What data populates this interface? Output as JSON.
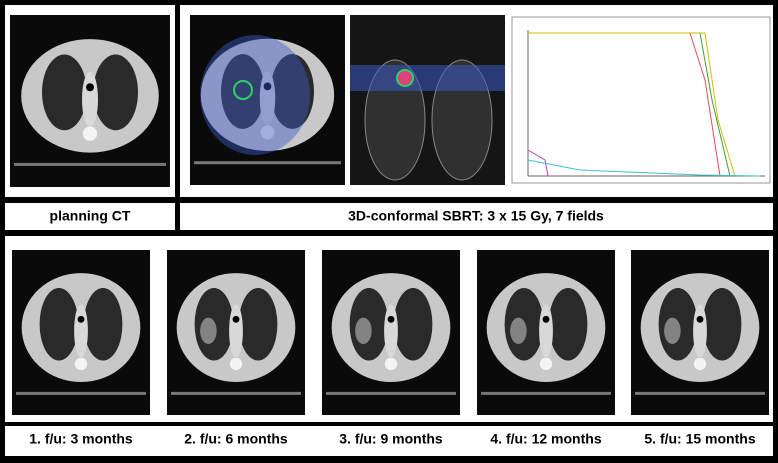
{
  "labels": {
    "planning": "planning CT",
    "treatment": "3D-conformal SBRT: 3 x 15 Gy, 7 fields"
  },
  "followups": [
    "1. f/u: 3 months",
    "2. f/u: 6 months",
    "3. f/u: 9 months",
    "4. f/u: 12 months",
    "5. f/u: 15 months"
  ]
}
